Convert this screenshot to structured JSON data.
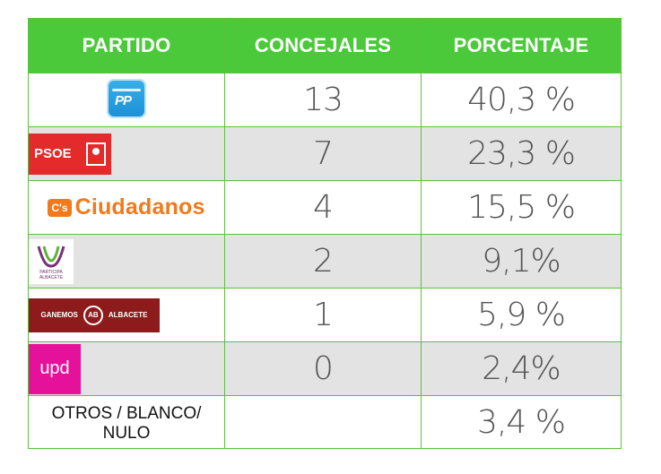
{
  "header": {
    "col1": "PARTIDO",
    "col2": "CONCEJALES",
    "col3": "PORCENTAJE"
  },
  "colors": {
    "header_bg": "#4cc93b",
    "row_alt_bg": "#e3e3e3",
    "border": "#5fbf3f"
  },
  "rows": [
    {
      "logo": "pp-logo",
      "logo_text": "PP",
      "concejales": "13",
      "porcentaje": "40,3 %"
    },
    {
      "logo": "psoe-logo",
      "logo_text": "PSOE",
      "concejales": "7",
      "porcentaje": "23,3 %"
    },
    {
      "logo": "ciudadanos-logo",
      "logo_text": "Ciudadanos",
      "logo_badge": "C's",
      "concejales": "4",
      "porcentaje": "15,5 %"
    },
    {
      "logo": "participa-albacete-logo",
      "logo_text": "PARTICIPA ALBACETE",
      "concejales": "2",
      "porcentaje": "9,1%"
    },
    {
      "logo": "ganemos-albacete-logo",
      "logo_text": "GANEMOS",
      "logo_badge": "AB",
      "logo_text2": "ALBACETE",
      "concejales": "1",
      "porcentaje": "5,9 %"
    },
    {
      "logo": "upd-logo",
      "logo_text": "upd",
      "concejales": "0",
      "porcentaje": "2,4%"
    },
    {
      "label": "OTROS / BLANCO/ NULO",
      "concejales": "",
      "porcentaje": "3,4 %"
    }
  ]
}
